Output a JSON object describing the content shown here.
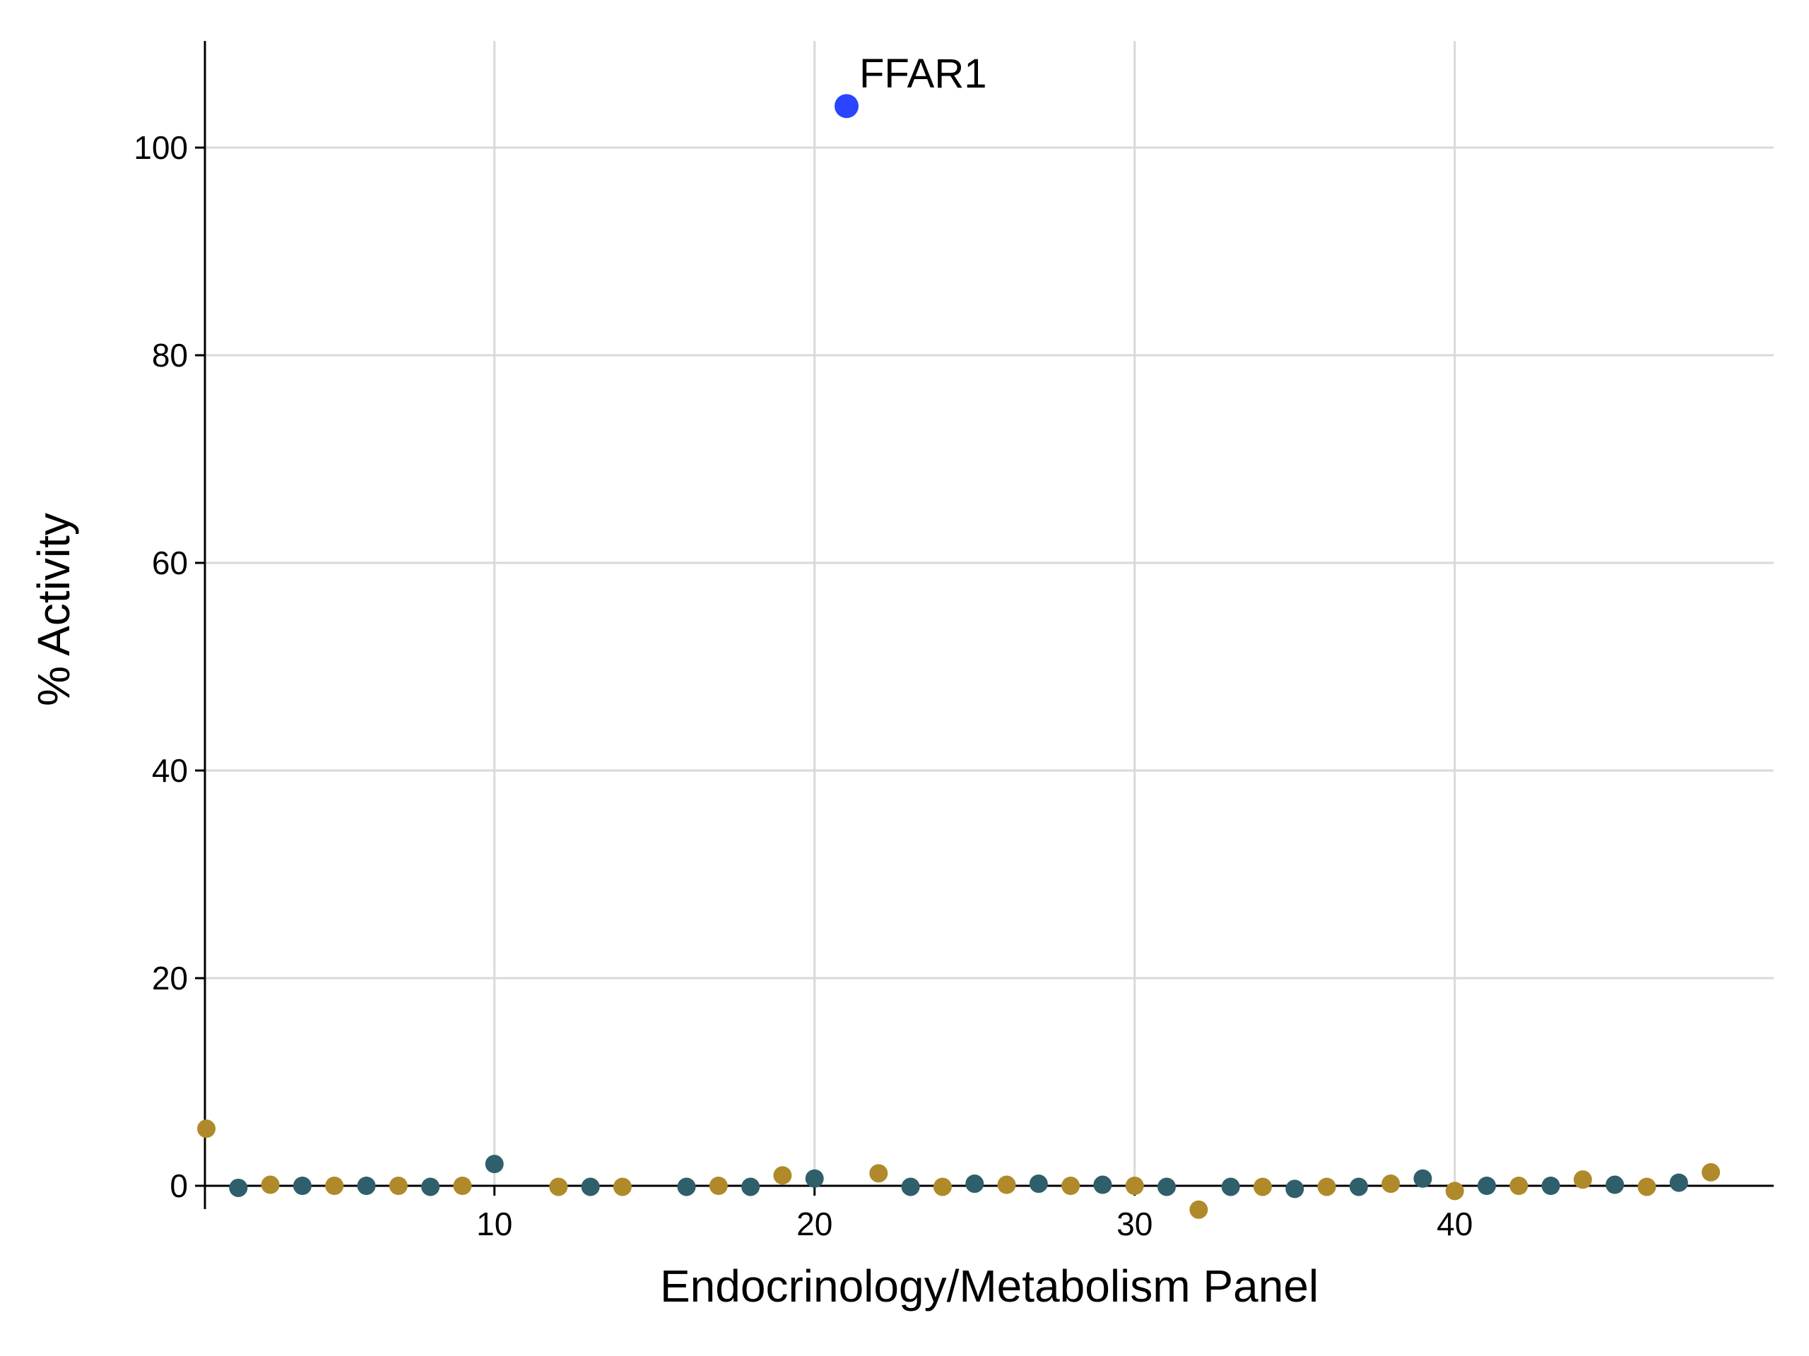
{
  "chart_data": {
    "type": "scatter",
    "title": "",
    "xlabel": "Endocrinology/Metabolism Panel",
    "ylabel": "% Activity",
    "xlim": [
      0,
      49
    ],
    "ylim": [
      -4,
      110
    ],
    "xticks": [
      10,
      20,
      30,
      40
    ],
    "yticks": [
      0,
      20,
      40,
      60,
      80,
      100
    ],
    "grid": true,
    "legend": "none",
    "colors": {
      "teal": "#2e5f6b",
      "gold": "#b08a2a",
      "highlight": "#2a44ff"
    },
    "points": [
      {
        "x": 1,
        "y": 5.5,
        "color": "gold"
      },
      {
        "x": 2,
        "y": -0.2,
        "color": "teal"
      },
      {
        "x": 3,
        "y": 0.1,
        "color": "gold"
      },
      {
        "x": 4,
        "y": 0.0,
        "color": "teal"
      },
      {
        "x": 5,
        "y": 0.0,
        "color": "gold"
      },
      {
        "x": 6,
        "y": 0.0,
        "color": "teal"
      },
      {
        "x": 7,
        "y": 0.0,
        "color": "gold"
      },
      {
        "x": 8,
        "y": -0.1,
        "color": "teal"
      },
      {
        "x": 9,
        "y": 0.0,
        "color": "gold"
      },
      {
        "x": 10,
        "y": 2.1,
        "color": "teal"
      },
      {
        "x": 12,
        "y": -0.1,
        "color": "gold"
      },
      {
        "x": 13,
        "y": -0.1,
        "color": "teal"
      },
      {
        "x": 14,
        "y": -0.1,
        "color": "gold"
      },
      {
        "x": 16,
        "y": -0.1,
        "color": "teal"
      },
      {
        "x": 17,
        "y": 0.0,
        "color": "gold"
      },
      {
        "x": 18,
        "y": -0.1,
        "color": "teal"
      },
      {
        "x": 19,
        "y": 1.0,
        "color": "gold"
      },
      {
        "x": 20,
        "y": 0.7,
        "color": "teal"
      },
      {
        "x": 21,
        "y": 104,
        "color": "highlight",
        "label": "FFAR1"
      },
      {
        "x": 22,
        "y": 1.2,
        "color": "gold"
      },
      {
        "x": 23,
        "y": -0.1,
        "color": "teal"
      },
      {
        "x": 24,
        "y": -0.1,
        "color": "gold"
      },
      {
        "x": 25,
        "y": 0.2,
        "color": "teal"
      },
      {
        "x": 26,
        "y": 0.1,
        "color": "gold"
      },
      {
        "x": 27,
        "y": 0.2,
        "color": "teal"
      },
      {
        "x": 28,
        "y": 0.0,
        "color": "gold"
      },
      {
        "x": 29,
        "y": 0.1,
        "color": "teal"
      },
      {
        "x": 30,
        "y": 0.0,
        "color": "gold"
      },
      {
        "x": 31,
        "y": -0.1,
        "color": "teal"
      },
      {
        "x": 32,
        "y": -2.3,
        "color": "gold"
      },
      {
        "x": 33,
        "y": -0.1,
        "color": "teal"
      },
      {
        "x": 34,
        "y": -0.1,
        "color": "gold"
      },
      {
        "x": 35,
        "y": -0.3,
        "color": "teal"
      },
      {
        "x": 36,
        "y": -0.1,
        "color": "gold"
      },
      {
        "x": 37,
        "y": -0.1,
        "color": "teal"
      },
      {
        "x": 38,
        "y": 0.2,
        "color": "gold"
      },
      {
        "x": 39,
        "y": 0.7,
        "color": "teal"
      },
      {
        "x": 40,
        "y": -0.5,
        "color": "gold"
      },
      {
        "x": 41,
        "y": 0.0,
        "color": "teal"
      },
      {
        "x": 42,
        "y": 0.0,
        "color": "gold"
      },
      {
        "x": 43,
        "y": 0.0,
        "color": "teal"
      },
      {
        "x": 44,
        "y": 0.6,
        "color": "gold"
      },
      {
        "x": 45,
        "y": 0.1,
        "color": "teal"
      },
      {
        "x": 46,
        "y": -0.1,
        "color": "gold"
      },
      {
        "x": 47,
        "y": 0.3,
        "color": "teal"
      },
      {
        "x": 48,
        "y": 1.3,
        "color": "gold"
      }
    ]
  }
}
